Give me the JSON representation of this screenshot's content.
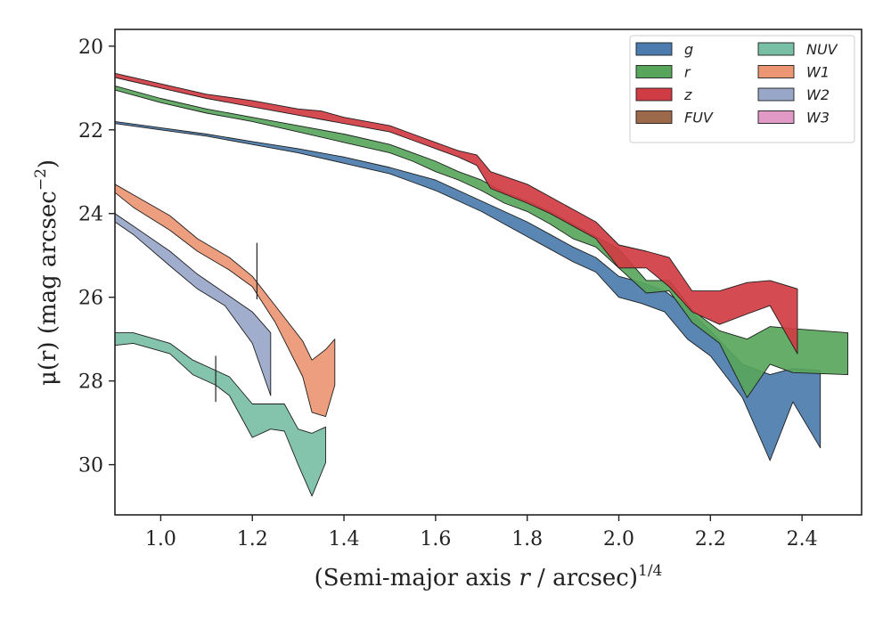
{
  "chart_data": {
    "type": "area",
    "xlabel_prefix": "(Semi-major axis ",
    "xlabel_var": "r",
    "xlabel_suffix": " / arcsec)",
    "xlabel_sup": "1/4",
    "ylabel": "μ(r) (mag arcsec",
    "ylabel_sup": "−2",
    "ylabel_close": ")",
    "xlim": [
      0.9,
      2.53
    ],
    "ylim": [
      31.2,
      19.6
    ],
    "y_inverted": true,
    "x_ticks": [
      1.0,
      1.2,
      1.4,
      1.6,
      1.8,
      2.0,
      2.2,
      2.4
    ],
    "x_tick_labels": [
      "1.0",
      "1.2",
      "1.4",
      "1.6",
      "1.8",
      "2.0",
      "2.2",
      "2.4"
    ],
    "y_ticks": [
      20,
      22,
      24,
      26,
      28,
      30
    ],
    "y_tick_labels": [
      "20",
      "22",
      "24",
      "26",
      "28",
      "30"
    ],
    "grid": false,
    "legend_position": "top-right",
    "legend_columns": 2,
    "legend": [
      {
        "label": "g",
        "color": "#4c7cad"
      },
      {
        "label": "r",
        "color": "#58a65c"
      },
      {
        "label": "z",
        "color": "#d03c43"
      },
      {
        "label": "FUV",
        "color": "#9c6a4b"
      },
      {
        "label": "NUV",
        "color": "#79bfa6"
      },
      {
        "label": "W1",
        "color": "#ec9674"
      },
      {
        "label": "W2",
        "color": "#98a6c8"
      },
      {
        "label": "W3",
        "color": "#e09ac5"
      }
    ],
    "series": [
      {
        "name": "g",
        "color": "#4c7cad",
        "x": [
          0.9,
          1.0,
          1.1,
          1.2,
          1.3,
          1.4,
          1.5,
          1.55,
          1.6,
          1.65,
          1.7,
          1.75,
          1.8,
          1.85,
          1.9,
          1.95,
          2.0,
          2.05,
          2.1,
          2.15,
          2.2,
          2.27,
          2.33,
          2.38,
          2.44
        ],
        "lo": [
          21.8,
          21.95,
          22.1,
          22.28,
          22.45,
          22.65,
          22.9,
          23.05,
          23.2,
          23.45,
          23.7,
          23.95,
          24.2,
          24.5,
          24.8,
          25.05,
          25.5,
          25.65,
          25.85,
          26.25,
          26.8,
          27.6,
          27.85,
          27.7,
          27.75
        ],
        "hi": [
          21.85,
          22.0,
          22.15,
          22.35,
          22.55,
          22.8,
          23.05,
          23.25,
          23.45,
          23.7,
          23.95,
          24.25,
          24.55,
          24.85,
          25.15,
          25.4,
          26.0,
          26.15,
          26.35,
          27.0,
          27.4,
          28.4,
          29.9,
          28.5,
          29.6
        ]
      },
      {
        "name": "r",
        "color": "#58a65c",
        "x": [
          0.9,
          1.0,
          1.1,
          1.2,
          1.3,
          1.4,
          1.5,
          1.55,
          1.6,
          1.65,
          1.7,
          1.75,
          1.8,
          1.85,
          1.9,
          1.95,
          2.0,
          2.06,
          2.11,
          2.16,
          2.22,
          2.28,
          2.33,
          2.38,
          2.5
        ],
        "lo": [
          20.95,
          21.25,
          21.5,
          21.7,
          21.9,
          22.1,
          22.35,
          22.55,
          22.75,
          23.0,
          23.2,
          23.5,
          23.7,
          23.95,
          24.25,
          24.55,
          24.85,
          25.6,
          25.6,
          26.3,
          26.8,
          27.0,
          26.7,
          26.75,
          26.85
        ],
        "hi": [
          21.05,
          21.35,
          21.6,
          21.8,
          22.05,
          22.3,
          22.55,
          22.75,
          23.0,
          23.2,
          23.45,
          23.75,
          23.95,
          24.25,
          24.6,
          24.8,
          25.3,
          25.9,
          25.85,
          26.6,
          27.1,
          28.4,
          27.6,
          27.8,
          27.85
        ]
      },
      {
        "name": "z",
        "color": "#d03c43",
        "x": [
          0.9,
          1.0,
          1.1,
          1.2,
          1.3,
          1.35,
          1.4,
          1.5,
          1.55,
          1.6,
          1.65,
          1.69,
          1.72,
          1.8,
          1.85,
          1.9,
          1.95,
          2.0,
          2.06,
          2.11,
          2.16,
          2.22,
          2.28,
          2.33,
          2.39
        ],
        "lo": [
          20.65,
          20.9,
          21.15,
          21.3,
          21.5,
          21.55,
          21.7,
          21.9,
          22.1,
          22.3,
          22.5,
          22.6,
          23.0,
          23.3,
          23.6,
          23.9,
          24.2,
          24.75,
          24.9,
          25.05,
          25.85,
          25.85,
          25.65,
          25.6,
          25.8
        ],
        "hi": [
          20.75,
          21.0,
          21.25,
          21.45,
          21.65,
          21.75,
          21.85,
          22.05,
          22.25,
          22.45,
          22.65,
          22.85,
          23.4,
          23.75,
          24.0,
          24.3,
          24.6,
          25.3,
          25.3,
          25.75,
          26.35,
          26.65,
          26.4,
          26.2,
          27.35
        ]
      },
      {
        "name": "NUV",
        "color": "#79bfa6",
        "x": [
          0.9,
          0.94,
          1.02,
          1.07,
          1.12,
          1.15,
          1.2,
          1.24,
          1.27,
          1.3,
          1.33,
          1.36
        ],
        "lo": [
          26.85,
          26.85,
          27.1,
          27.5,
          27.75,
          27.9,
          28.55,
          28.55,
          28.55,
          29.15,
          29.25,
          29.1
        ],
        "hi": [
          27.15,
          27.1,
          27.35,
          27.85,
          28.1,
          28.35,
          29.35,
          29.15,
          29.2,
          30.0,
          30.75,
          29.95
        ]
      },
      {
        "name": "W1",
        "color": "#ec9674",
        "x": [
          0.9,
          0.94,
          1.02,
          1.08,
          1.15,
          1.2,
          1.25,
          1.31,
          1.33,
          1.36,
          1.38
        ],
        "lo": [
          23.3,
          23.55,
          24.05,
          24.6,
          25.05,
          25.5,
          26.2,
          27.05,
          27.5,
          27.25,
          27.0
        ],
        "hi": [
          23.5,
          23.85,
          24.4,
          24.9,
          25.35,
          25.75,
          26.6,
          27.9,
          28.75,
          28.85,
          28.1
        ]
      },
      {
        "name": "W2",
        "color": "#98a6c8",
        "x": [
          0.9,
          0.94,
          1.02,
          1.08,
          1.14,
          1.2,
          1.24
        ],
        "lo": [
          24.0,
          24.3,
          24.9,
          25.45,
          25.9,
          26.35,
          26.85
        ],
        "hi": [
          24.2,
          24.5,
          25.25,
          25.8,
          26.2,
          27.1,
          28.35
        ]
      }
    ],
    "error_bars": [
      {
        "x": 1.12,
        "y_low": 27.4,
        "y_high": 28.5
      },
      {
        "x": 1.21,
        "y_low": 24.7,
        "y_high": 26.05
      }
    ]
  }
}
